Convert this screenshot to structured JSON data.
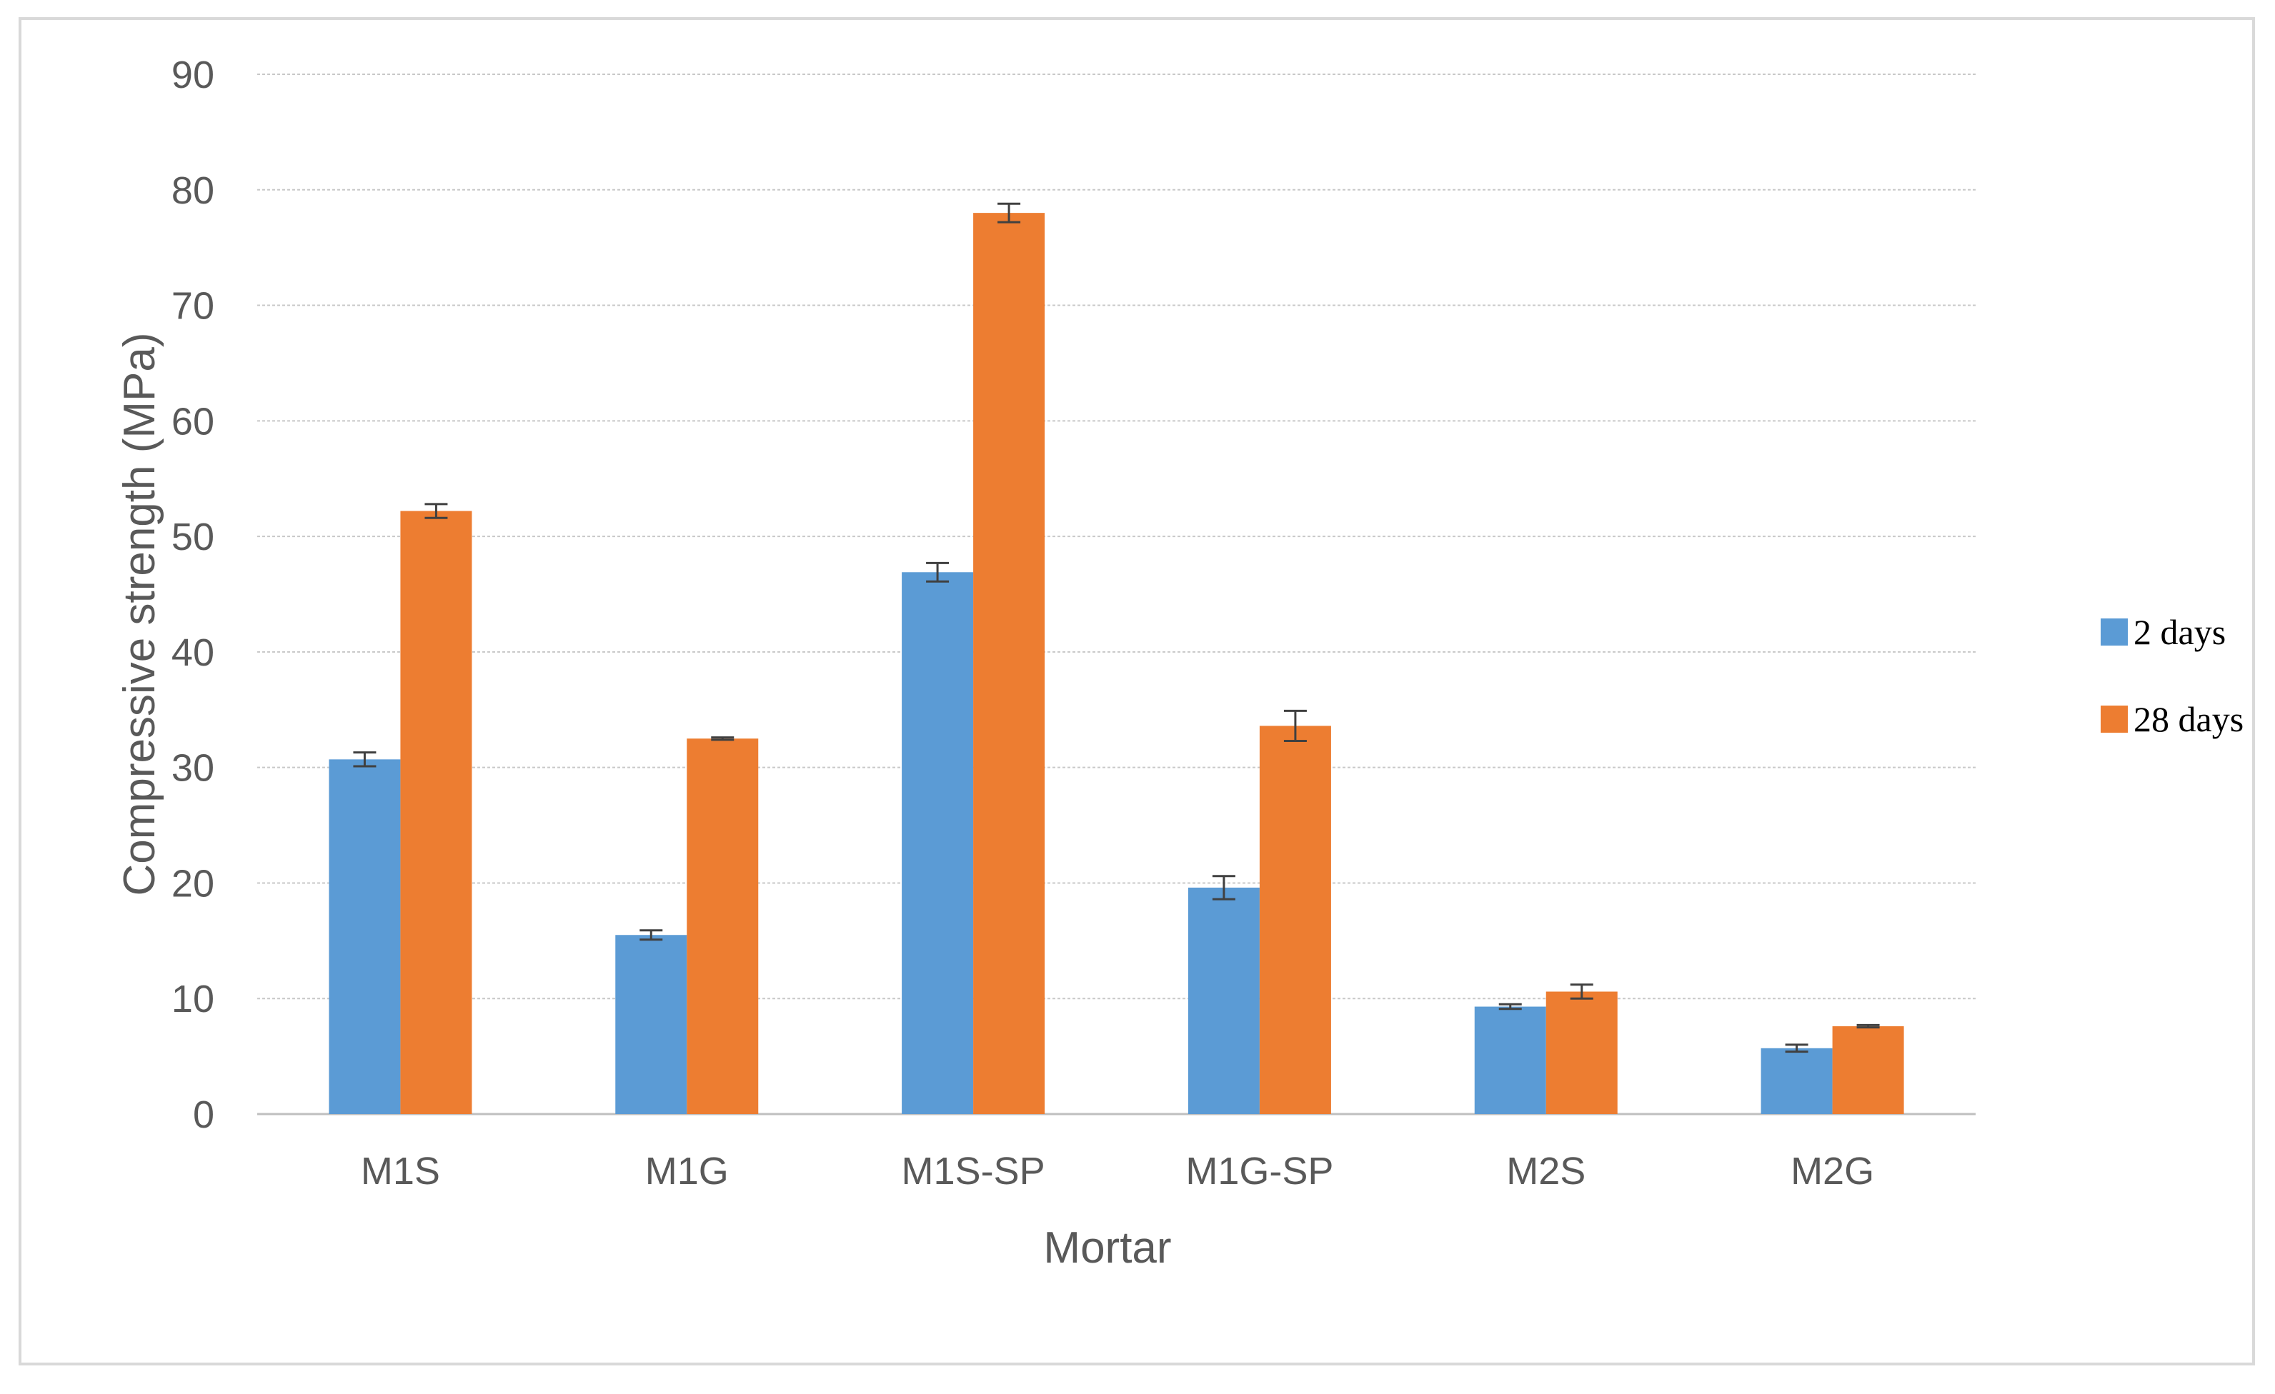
{
  "chart_data": {
    "type": "bar",
    "title": "",
    "xlabel": "Mortar",
    "ylabel": "Compressive strength (MPa)",
    "ylim": [
      0,
      90
    ],
    "yticks": [
      0,
      10,
      20,
      30,
      40,
      50,
      60,
      70,
      80,
      90
    ],
    "grid": true,
    "legend_position": "right",
    "categories": [
      "M1S",
      "M1G",
      "M1S-SP",
      "M1G-SP",
      "M2S",
      "M2G"
    ],
    "series": [
      {
        "name": "2 days",
        "color": "#5B9BD5",
        "values": [
          30.7,
          15.5,
          46.9,
          19.6,
          9.3,
          5.7
        ],
        "errors": [
          0.6,
          0.4,
          0.8,
          1.0,
          0.2,
          0.3
        ]
      },
      {
        "name": "28 days",
        "color": "#ED7D31",
        "values": [
          52.2,
          32.5,
          78.0,
          33.6,
          10.6,
          7.6
        ],
        "errors": [
          0.6,
          0.1,
          0.8,
          1.3,
          0.6,
          0.1
        ]
      }
    ]
  }
}
